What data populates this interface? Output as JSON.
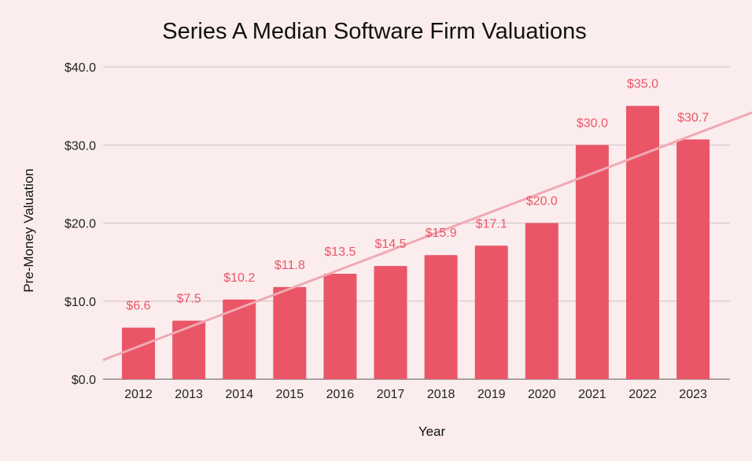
{
  "chart_data": {
    "type": "bar",
    "title": "Series A Median Software Firm Valuations",
    "xlabel": "Year",
    "ylabel": "Pre-Money Valuation",
    "categories": [
      "2012",
      "2013",
      "2014",
      "2015",
      "2016",
      "2017",
      "2018",
      "2019",
      "2020",
      "2021",
      "2022",
      "2023"
    ],
    "values": [
      6.6,
      7.5,
      10.2,
      11.8,
      13.5,
      14.5,
      15.9,
      17.1,
      20.0,
      30.0,
      35.0,
      30.7
    ],
    "value_labels": [
      "$6.6",
      "$7.5",
      "$10.2",
      "$11.8",
      "$13.5",
      "$14.5",
      "$15.9",
      "$17.1",
      "$20.0",
      "$30.0",
      "$35.0",
      "$30.7"
    ],
    "ylim": [
      0,
      40
    ],
    "yticks": [
      0,
      10,
      20,
      30,
      40
    ],
    "ytick_labels": [
      "$0.0",
      "$10.0",
      "$20.0",
      "$30.0",
      "$40.0"
    ],
    "grid": true,
    "legend": "none",
    "trendline": true,
    "colors": {
      "bar": "#ea5668",
      "trendline": "#f0a9b3",
      "data_label": "#ea5668",
      "gridline": "#cfc2c4",
      "background": "#fbeded"
    }
  }
}
